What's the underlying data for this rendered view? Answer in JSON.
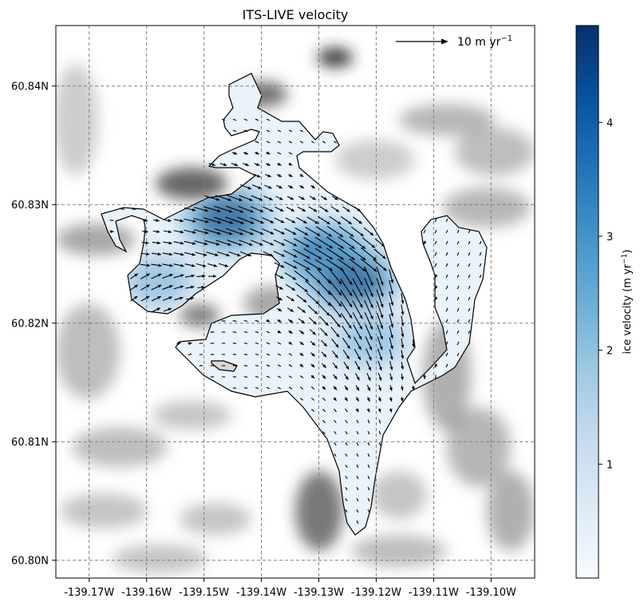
{
  "chart_data": {
    "type": "heatmap",
    "title": "ITS-LIVE velocity",
    "xlabel": "",
    "ylabel": "",
    "xlim": [
      -139.1758,
      -139.0924
    ],
    "ylim": [
      60.7985,
      60.8451
    ],
    "grid": true,
    "x_ticks": [
      -139.17,
      -139.16,
      -139.15,
      -139.14,
      -139.13,
      -139.12,
      -139.11,
      -139.1
    ],
    "x_tick_labels": [
      "-139.17W",
      "-139.16W",
      "-139.15W",
      "-139.14W",
      "-139.13W",
      "-139.12W",
      "-139.11W",
      "-139.10W"
    ],
    "y_ticks": [
      60.8,
      60.81,
      60.82,
      60.83,
      60.84
    ],
    "y_tick_labels": [
      "60.80N",
      "60.81N",
      "60.82N",
      "60.83N",
      "60.84N"
    ],
    "colorbar": {
      "label": "ice velocity (m yr",
      "label_sup": "−1",
      "label_suffix": ")",
      "range": [
        0,
        4.85
      ],
      "ticks": [
        1,
        2,
        3,
        4
      ],
      "tick_labels": [
        "1",
        "2",
        "3",
        "4"
      ],
      "colormap": "Blues"
    },
    "quiver_key": {
      "magnitude": 10,
      "label": "10 m yr",
      "label_sup": "−1"
    },
    "velocity_peaks": [
      {
        "lon": -139.146,
        "lat": 60.8288,
        "value": 4.6
      },
      {
        "lon": -139.129,
        "lat": 60.8258,
        "value": 4.4
      },
      {
        "lon": -139.124,
        "lat": 60.8235,
        "value": 4.8
      },
      {
        "lon": -139.121,
        "lat": 60.8185,
        "value": 2.6
      },
      {
        "lon": -139.158,
        "lat": 60.8235,
        "value": 2.2
      }
    ]
  }
}
